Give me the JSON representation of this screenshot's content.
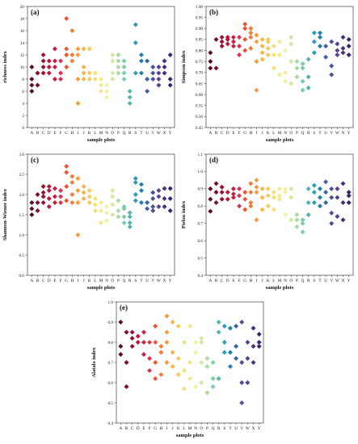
{
  "chart_data": [
    {
      "type": "scatter",
      "id": "a",
      "tag": "(a)",
      "xlabel": "sample plots",
      "ylabel": "richness index",
      "ylim": [
        0,
        20
      ],
      "yticks": [
        0,
        2,
        4,
        6,
        8,
        10,
        12,
        14,
        16,
        18,
        20
      ],
      "ytick_labels": [
        "0",
        "2",
        "4",
        "6",
        "8",
        "10",
        "12",
        "14",
        "16",
        "18",
        "20"
      ],
      "categories": [
        "A",
        "B",
        "C",
        "D",
        "E",
        "F",
        "G",
        "H",
        "I",
        "J",
        "K",
        "L",
        "M",
        "N",
        "O",
        "P",
        "Q",
        "R",
        "S",
        "T",
        "U",
        "V",
        "W",
        "X",
        "Y"
      ],
      "points": [
        [
          [
            6,
            7,
            8,
            10
          ]
        ],
        [
          [
            7,
            9
          ]
        ],
        [
          [
            9,
            10,
            11,
            12
          ]
        ],
        [
          [
            9,
            10,
            11
          ]
        ],
        [
          [
            8,
            10,
            11,
            13
          ]
        ],
        [
          [
            8,
            9,
            11
          ]
        ],
        [
          [
            10,
            12,
            13,
            18
          ]
        ],
        [
          [
            11,
            12,
            16
          ]
        ],
        [
          [
            4,
            8,
            12,
            13
          ]
        ],
        [
          [
            8,
            9,
            10,
            13
          ]
        ],
        [
          [
            8,
            9,
            13
          ]
        ],
        [
          [
            8,
            9
          ]
        ],
        [
          [
            6,
            7,
            8
          ]
        ],
        [
          [
            5,
            6,
            7
          ]
        ],
        [
          [
            8,
            9,
            11,
            12
          ]
        ],
        [
          [
            9,
            10,
            11,
            12
          ]
        ],
        [
          [
            8,
            9,
            10,
            11
          ]
        ],
        [
          [
            4,
            5,
            6
          ]
        ],
        [
          [
            9,
            14,
            17
          ]
        ],
        [
          [
            9,
            11,
            12
          ]
        ],
        [
          [
            6,
            8,
            11
          ]
        ],
        [
          [
            8,
            9,
            10
          ]
        ],
        [
          [
            7,
            8,
            9,
            10
          ]
        ],
        [
          [
            9,
            10,
            11
          ]
        ],
        [
          [
            7,
            8,
            12
          ]
        ]
      ]
    },
    {
      "type": "scatter",
      "id": "b",
      "tag": "(b)",
      "xlabel": "sample plots",
      "ylabel": "Simpson index",
      "ylim": [
        0.45,
        1.0
      ],
      "yticks": [
        0.45,
        0.5,
        0.55,
        0.6,
        0.65,
        0.7,
        0.75,
        0.8,
        0.85,
        0.9,
        0.95,
        1.0
      ],
      "ytick_labels": [
        "0.45",
        "0.50",
        "0.55",
        "0.60",
        "0.65",
        "0.70",
        "0.75",
        "0.80",
        "0.85",
        "0.90",
        "0.95",
        "1.00"
      ],
      "categories": [
        "A",
        "B",
        "C",
        "D",
        "E",
        "F",
        "G",
        "H",
        "I",
        "J",
        "K",
        "L",
        "M",
        "N",
        "O",
        "P",
        "Q",
        "R",
        "S",
        "T",
        "U",
        "V",
        "W",
        "X",
        "Y"
      ],
      "points": [
        [
          [
            0.72,
            0.75,
            0.79
          ]
        ],
        [
          [
            0.72,
            0.85
          ]
        ],
        [
          [
            0.82,
            0.84,
            0.86
          ]
        ],
        [
          [
            0.83,
            0.85,
            0.86
          ]
        ],
        [
          [
            0.82,
            0.84,
            0.86
          ]
        ],
        [
          [
            0.78,
            0.82,
            0.86
          ]
        ],
        [
          [
            0.8,
            0.85,
            0.9,
            0.92
          ]
        ],
        [
          [
            0.81,
            0.86,
            0.88,
            0.9
          ]
        ],
        [
          [
            0.62,
            0.75,
            0.84,
            0.87
          ]
        ],
        [
          [
            0.76,
            0.79,
            0.82,
            0.85
          ]
        ],
        [
          [
            0.78,
            0.81,
            0.84,
            0.85
          ]
        ],
        [
          [
            0.72,
            0.78,
            0.82
          ]
        ],
        [
          [
            0.69,
            0.78,
            0.84
          ]
        ],
        [
          [
            0.66,
            0.7,
            0.8
          ]
        ],
        [
          [
            0.65,
            0.75,
            0.83,
            0.86
          ]
        ],
        [
          [
            0.68,
            0.72,
            0.75
          ]
        ],
        [
          [
            0.62,
            0.66,
            0.72,
            0.74
          ]
        ],
        [
          [
            0.63,
            0.68,
            0.76
          ]
        ],
        [
          [
            0.79,
            0.84,
            0.88
          ]
        ],
        [
          [
            0.82,
            0.86,
            0.88
          ]
        ],
        [
          [
            0.77,
            0.82
          ]
        ],
        [
          [
            0.69,
            0.73,
            0.84
          ]
        ],
        [
          [
            0.78,
            0.8,
            0.83
          ]
        ],
        [
          [
            0.79,
            0.81,
            0.86
          ]
        ],
        [
          [
            0.78,
            0.82,
            0.85
          ]
        ]
      ]
    },
    {
      "type": "scatter",
      "id": "c",
      "tag": "(c)",
      "xlabel": "sample plots",
      "ylabel": "Shannon-Wiener index",
      "ylim": [
        0,
        3.0
      ],
      "yticks": [
        0,
        0.5,
        1.0,
        1.5,
        2.0,
        2.5,
        3.0
      ],
      "ytick_labels": [
        "0.0",
        "0.5",
        "1.0",
        "1.5",
        "2.0",
        "2.5",
        "3.0"
      ],
      "categories": [
        "A",
        "B",
        "C",
        "D",
        "E",
        "F",
        "G",
        "H",
        "I",
        "J",
        "K",
        "L",
        "M",
        "N",
        "O",
        "P",
        "Q",
        "R",
        "S",
        "T",
        "U",
        "V",
        "W",
        "X",
        "Y"
      ],
      "points": [
        [
          [
            1.5,
            1.65,
            1.8
          ]
        ],
        [
          [
            1.6,
            1.8,
            2.0
          ]
        ],
        [
          [
            1.8,
            1.95,
            2.05,
            2.2
          ]
        ],
        [
          [
            1.7,
            1.9,
            2.1,
            2.2
          ]
        ],
        [
          [
            1.8,
            1.95,
            2.15
          ]
        ],
        [
          [
            1.8,
            1.95,
            2.1
          ]
        ],
        [
          [
            1.85,
            2.2,
            2.55,
            2.7
          ]
        ],
        [
          [
            1.8,
            2.0,
            2.3,
            2.45
          ]
        ],
        [
          [
            1.0,
            1.8,
            2.1,
            2.4
          ]
        ],
        [
          [
            1.9,
            2.05,
            2.2
          ]
        ],
        [
          [
            1.8,
            1.95,
            2.1
          ]
        ],
        [
          [
            1.6,
            1.75,
            1.9
          ]
        ],
        [
          [
            1.3,
            1.6,
            1.8
          ]
        ],
        [
          [
            1.35,
            1.55,
            1.7
          ]
        ],
        [
          [
            1.5,
            1.75,
            1.95,
            2.1
          ]
        ],
        [
          [
            1.45,
            1.6,
            1.85
          ]
        ],
        [
          [
            1.3,
            1.45,
            1.65,
            1.7
          ]
        ],
        [
          [
            1.2,
            1.3,
            1.45,
            1.55
          ]
        ],
        [
          [
            1.85,
            2.0,
            2.3,
            2.4
          ]
        ],
        [
          [
            1.8,
            2.1,
            2.25
          ]
        ],
        [
          [
            1.65,
            1.8
          ]
        ],
        [
          [
            1.6,
            1.7,
            1.9,
            2.05
          ]
        ],
        [
          [
            1.7,
            1.95,
            2.1
          ]
        ],
        [
          [
            1.7,
            1.9,
            2.15
          ]
        ],
        [
          [
            1.6,
            1.9,
            2.15
          ]
        ]
      ]
    },
    {
      "type": "scatter",
      "id": "d",
      "tag": "(d)",
      "xlabel": "sample plots",
      "ylabel": "Pielou index",
      "ylim": [
        0.4,
        1.1
      ],
      "yticks": [
        0.4,
        0.5,
        0.6,
        0.7,
        0.8,
        0.9,
        1.0,
        1.1
      ],
      "ytick_labels": [
        "0.4",
        "0.5",
        "0.6",
        "0.7",
        "0.8",
        "0.9",
        "1.0",
        "1.1"
      ],
      "categories": [
        "A",
        "B",
        "C",
        "D",
        "E",
        "F",
        "G",
        "H",
        "I",
        "J",
        "K",
        "L",
        "M",
        "N",
        "O",
        "P",
        "Q",
        "R",
        "S",
        "T",
        "U",
        "V",
        "W",
        "X",
        "Y"
      ],
      "points": [
        [
          [
            0.77,
            0.84,
            0.9
          ]
        ],
        [
          [
            0.82,
            0.88,
            0.93
          ]
        ],
        [
          [
            0.84,
            0.88,
            0.91
          ]
        ],
        [
          [
            0.84,
            0.88
          ]
        ],
        [
          [
            0.85,
            0.87,
            0.9
          ]
        ],
        [
          [
            0.8,
            0.86,
            0.9
          ]
        ],
        [
          [
            0.78,
            0.84,
            0.88
          ]
        ],
        [
          [
            0.8,
            0.82,
            0.88,
            0.93
          ]
        ],
        [
          [
            0.72,
            0.88,
            0.91,
            0.95
          ]
        ],
        [
          [
            0.78,
            0.85,
            0.9
          ]
        ],
        [
          [
            0.8,
            0.86,
            0.9
          ]
        ],
        [
          [
            0.78,
            0.85,
            0.88
          ]
        ],
        [
          [
            0.84,
            0.86,
            0.9
          ]
        ],
        [
          [
            0.75,
            0.88,
            0.9
          ]
        ],
        [
          [
            0.72,
            0.85,
            0.9
          ]
        ],
        [
          [
            0.68,
            0.72,
            0.75
          ]
        ],
        [
          [
            0.65,
            0.7,
            0.72
          ]
        ],
        [
          [
            0.75,
            0.82,
            0.9
          ]
        ],
        [
          [
            0.82,
            0.88,
            0.92
          ]
        ],
        [
          [
            0.8,
            0.85,
            0.9
          ]
        ],
        [
          [
            0.82,
            0.88,
            0.94
          ]
        ],
        [
          [
            0.7,
            0.76,
            0.85,
            0.9
          ]
        ],
        [
          [
            0.74,
            0.85,
            0.9
          ]
        ],
        [
          [
            0.72,
            0.82,
            0.93
          ]
        ],
        [
          [
            0.82,
            0.86,
            0.88
          ]
        ]
      ]
    },
    {
      "type": "scatter",
      "id": "e",
      "tag": "(e)",
      "xlabel": "sample plots",
      "ylabel": "Alatalo index",
      "ylim": [
        0.4,
        1.0
      ],
      "yticks": [
        0.4,
        0.5,
        0.6,
        0.7,
        0.8,
        0.9,
        1.0
      ],
      "ytick_labels": [
        "0.4",
        "0.5",
        "0.6",
        "0.7",
        "0.8",
        "0.9",
        "1.0"
      ],
      "categories": [
        "A",
        "B",
        "C",
        "D",
        "E",
        "F",
        "G",
        "H",
        "I",
        "J",
        "K",
        "L",
        "M",
        "N",
        "O",
        "P",
        "Q",
        "R",
        "S",
        "T",
        "U",
        "V",
        "W",
        "X",
        "Y"
      ],
      "points": [
        [
          [
            0.74,
            0.78,
            0.9
          ]
        ],
        [
          [
            0.58,
            0.7,
            0.85
          ]
        ],
        [
          [
            0.78,
            0.82,
            0.85
          ]
        ],
        [
          [
            0.8,
            0.83
          ]
        ],
        [
          [
            0.74,
            0.8,
            0.85
          ]
        ],
        [
          [
            0.66,
            0.72,
            0.8
          ]
        ],
        [
          [
            0.62,
            0.7,
            0.8,
            0.88
          ]
        ],
        [
          [
            0.64,
            0.75,
            0.78
          ]
        ],
        [
          [
            0.7,
            0.8,
            0.85,
            0.93
          ]
        ],
        [
          [
            0.68,
            0.75,
            0.9
          ]
        ],
        [
          [
            0.64,
            0.72,
            0.88
          ]
        ],
        [
          [
            0.57,
            0.66,
            0.8
          ]
        ],
        [
          [
            0.62,
            0.7,
            0.88
          ]
        ],
        [
          [
            0.58,
            0.75,
            0.8
          ]
        ],
        [
          [
            0.6,
            0.7,
            0.8,
            0.82
          ]
        ],
        [
          [
            0.55,
            0.68,
            0.72
          ]
        ],
        [
          [
            0.58,
            0.62,
            0.7
          ]
        ],
        [
          [
            0.62,
            0.85,
            0.9
          ]
        ],
        [
          [
            0.75,
            0.8,
            0.88
          ]
        ],
        [
          [
            0.68,
            0.75,
            0.87
          ]
        ],
        [
          [
            0.72,
            0.78,
            0.88
          ]
        ],
        [
          [
            0.5,
            0.6,
            0.7,
            0.9
          ]
        ],
        [
          [
            0.6,
            0.72,
            0.8
          ]
        ],
        [
          [
            0.7,
            0.78,
            0.87
          ]
        ],
        [
          [
            0.78,
            0.8,
            0.84
          ]
        ]
      ]
    }
  ],
  "palette": [
    "#5a0a2a",
    "#7a0c2e",
    "#9a1030",
    "#b8173a",
    "#c91d45",
    "#d6364c",
    "#ee5430",
    "#f47a38",
    "#f79a3e",
    "#f8b44a",
    "#f5c95a",
    "#f2df77",
    "#f5e88c",
    "#eef2a0",
    "#cfe9a0",
    "#a6dba4",
    "#7ccbab",
    "#52b5ae",
    "#2f9ab3",
    "#1f7fb2",
    "#3a63a6",
    "#4a4f9a",
    "#5b3f8e",
    "#4a2e7e",
    "#3a226c"
  ]
}
